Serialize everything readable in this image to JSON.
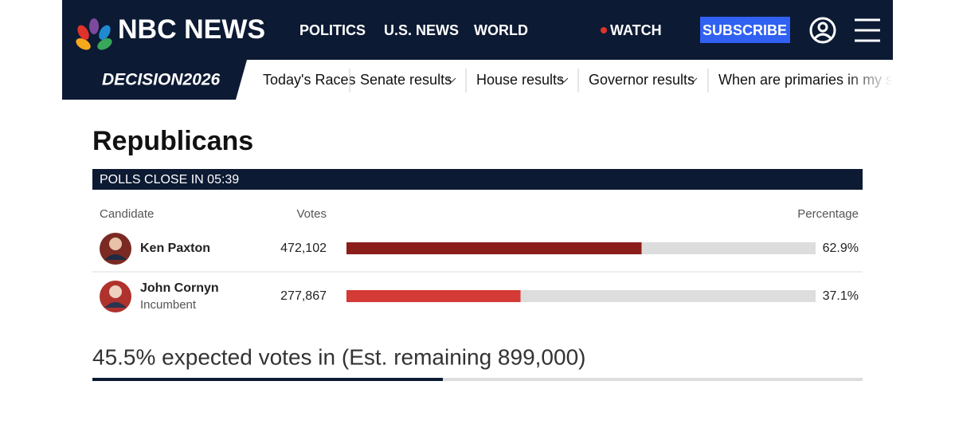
{
  "header": {
    "brand": "NBC NEWS",
    "nav": [
      "POLITICS",
      "U.S. NEWS",
      "WORLD"
    ],
    "watch": "WATCH",
    "subscribe": "SUBSCRIBE"
  },
  "subnav": {
    "logo": "DECISION2026",
    "items": [
      "Today's Races",
      "Senate results",
      "House results",
      "Governor results",
      "When are primaries in my sta"
    ]
  },
  "race": {
    "party": "Republicans",
    "status": "POLLS CLOSE IN 05:39",
    "columns": [
      "Candidate",
      "Votes",
      "Percentage"
    ],
    "candidates": [
      {
        "name": "Ken Paxton",
        "votes": "472,102",
        "percentage": {
          "value": 62.9,
          "label": "62.9%"
        }
      },
      {
        "name": "John Cornyn",
        "note": "Incumbent",
        "votes": "277,867",
        "percentage": {
          "value": 37.1,
          "label": "37.1%"
        }
      }
    ],
    "expected": {
      "value": 45.5,
      "label": "45.5% expected votes in (Est. remaining 899,000)"
    }
  }
}
